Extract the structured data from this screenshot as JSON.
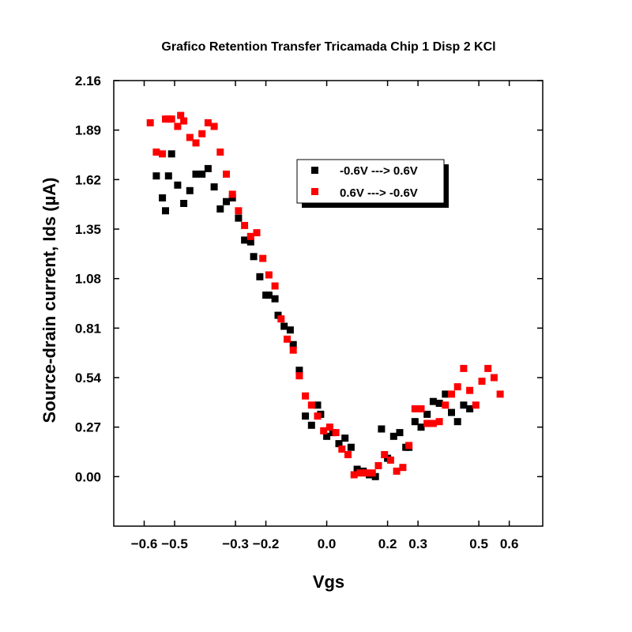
{
  "chart_data": {
    "type": "scatter",
    "title": "Grafico Retention Transfer Tricamada Chip 1 Disp 2 KCl",
    "xlabel": "Vgs",
    "ylabel": "Source-drain current, Ids (µA)",
    "xlim": [
      -0.7,
      0.71
    ],
    "ylim": [
      -0.27,
      2.16
    ],
    "xticks": [
      -0.6,
      -0.5,
      -0.3,
      -0.2,
      0.0,
      0.2,
      0.3,
      0.5,
      0.6
    ],
    "xtick_labels": [
      "−0.6",
      "−0.5",
      "−0.3",
      "−0.2",
      "0.0",
      "0.2",
      "0.3",
      "0.5",
      "0.6"
    ],
    "yticks": [
      0.0,
      0.27,
      0.54,
      0.81,
      1.08,
      1.35,
      1.62,
      1.89,
      2.16
    ],
    "ytick_labels": [
      "0.00",
      "0.27",
      "0.54",
      "0.81",
      "1.08",
      "1.35",
      "1.62",
      "1.89",
      "2.16"
    ],
    "grid": false,
    "legend_position": "top-right",
    "series": [
      {
        "name": "-0.6V ---> 0.6V",
        "color": "#000000",
        "marker": "square",
        "points": [
          [
            -0.56,
            1.64
          ],
          [
            -0.54,
            1.52
          ],
          [
            -0.53,
            1.45
          ],
          [
            -0.52,
            1.64
          ],
          [
            -0.51,
            1.76
          ],
          [
            -0.49,
            1.59
          ],
          [
            -0.47,
            1.49
          ],
          [
            -0.45,
            1.56
          ],
          [
            -0.43,
            1.65
          ],
          [
            -0.41,
            1.65
          ],
          [
            -0.39,
            1.68
          ],
          [
            -0.37,
            1.58
          ],
          [
            -0.35,
            1.46
          ],
          [
            -0.33,
            1.5
          ],
          [
            -0.31,
            1.52
          ],
          [
            -0.29,
            1.41
          ],
          [
            -0.27,
            1.29
          ],
          [
            -0.25,
            1.28
          ],
          [
            -0.24,
            1.2
          ],
          [
            -0.22,
            1.09
          ],
          [
            -0.2,
            0.99
          ],
          [
            -0.19,
            0.99
          ],
          [
            -0.17,
            0.97
          ],
          [
            -0.16,
            0.88
          ],
          [
            -0.14,
            0.82
          ],
          [
            -0.12,
            0.8
          ],
          [
            -0.11,
            0.72
          ],
          [
            -0.09,
            0.58
          ],
          [
            -0.07,
            0.33
          ],
          [
            -0.05,
            0.28
          ],
          [
            -0.03,
            0.39
          ],
          [
            -0.02,
            0.34
          ],
          [
            0.0,
            0.22
          ],
          [
            0.02,
            0.24
          ],
          [
            0.04,
            0.18
          ],
          [
            0.06,
            0.21
          ],
          [
            0.08,
            0.16
          ],
          [
            0.1,
            0.04
          ],
          [
            0.12,
            0.03
          ],
          [
            0.14,
            0.01
          ],
          [
            0.16,
            0.0
          ],
          [
            0.18,
            0.26
          ],
          [
            0.2,
            0.1
          ],
          [
            0.22,
            0.22
          ],
          [
            0.24,
            0.24
          ],
          [
            0.26,
            0.16
          ],
          [
            0.27,
            0.16
          ],
          [
            0.29,
            0.3
          ],
          [
            0.31,
            0.27
          ],
          [
            0.33,
            0.34
          ],
          [
            0.35,
            0.41
          ],
          [
            0.37,
            0.4
          ],
          [
            0.39,
            0.45
          ],
          [
            0.41,
            0.35
          ],
          [
            0.43,
            0.3
          ],
          [
            0.45,
            0.39
          ],
          [
            0.47,
            0.37
          ]
        ]
      },
      {
        "name": "0.6V ---> -0.6V",
        "color": "#ff0000",
        "marker": "square",
        "points": [
          [
            -0.58,
            1.93
          ],
          [
            -0.56,
            1.77
          ],
          [
            -0.54,
            1.76
          ],
          [
            -0.53,
            1.95
          ],
          [
            -0.52,
            1.95
          ],
          [
            -0.51,
            1.95
          ],
          [
            -0.49,
            1.91
          ],
          [
            -0.48,
            1.97
          ],
          [
            -0.47,
            1.94
          ],
          [
            -0.45,
            1.85
          ],
          [
            -0.43,
            1.82
          ],
          [
            -0.41,
            1.87
          ],
          [
            -0.39,
            1.93
          ],
          [
            -0.37,
            1.91
          ],
          [
            -0.35,
            1.77
          ],
          [
            -0.33,
            1.65
          ],
          [
            -0.31,
            1.54
          ],
          [
            -0.29,
            1.45
          ],
          [
            -0.27,
            1.37
          ],
          [
            -0.25,
            1.31
          ],
          [
            -0.23,
            1.33
          ],
          [
            -0.21,
            1.19
          ],
          [
            -0.19,
            1.1
          ],
          [
            -0.17,
            1.04
          ],
          [
            -0.15,
            0.86
          ],
          [
            -0.13,
            0.75
          ],
          [
            -0.11,
            0.69
          ],
          [
            -0.09,
            0.55
          ],
          [
            -0.07,
            0.44
          ],
          [
            -0.05,
            0.39
          ],
          [
            -0.03,
            0.33
          ],
          [
            -0.01,
            0.25
          ],
          [
            0.01,
            0.27
          ],
          [
            0.03,
            0.24
          ],
          [
            0.05,
            0.15
          ],
          [
            0.07,
            0.12
          ],
          [
            0.09,
            0.01
          ],
          [
            0.11,
            0.02
          ],
          [
            0.13,
            0.02
          ],
          [
            0.15,
            0.02
          ],
          [
            0.17,
            0.06
          ],
          [
            0.19,
            0.12
          ],
          [
            0.21,
            0.09
          ],
          [
            0.23,
            0.03
          ],
          [
            0.25,
            0.05
          ],
          [
            0.27,
            0.17
          ],
          [
            0.29,
            0.37
          ],
          [
            0.31,
            0.37
          ],
          [
            0.33,
            0.29
          ],
          [
            0.35,
            0.29
          ],
          [
            0.37,
            0.3
          ],
          [
            0.39,
            0.39
          ],
          [
            0.41,
            0.45
          ],
          [
            0.43,
            0.49
          ],
          [
            0.45,
            0.59
          ],
          [
            0.47,
            0.47
          ],
          [
            0.49,
            0.39
          ],
          [
            0.51,
            0.52
          ],
          [
            0.53,
            0.59
          ],
          [
            0.55,
            0.54
          ],
          [
            0.57,
            0.45
          ]
        ]
      }
    ]
  }
}
